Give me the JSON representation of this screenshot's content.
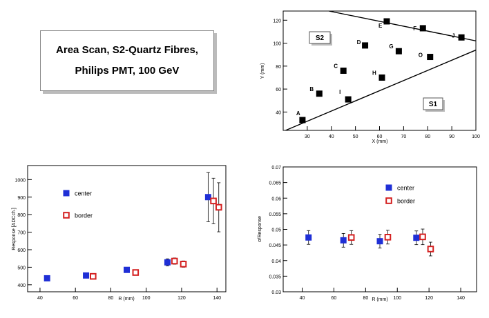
{
  "title_box": {
    "line1": "Area Scan, S2-Quartz Fibres,",
    "line2": "Philips PMT, 100 GeV"
  },
  "colors": {
    "center": "#1f2fd6",
    "border": "#d42020",
    "marker": "#000000",
    "axis": "#000000"
  },
  "chart_data": [
    {
      "type": "scatter",
      "name": "area-scan-map",
      "xlabel": "X (mm)",
      "ylabel": "Y (mm)",
      "xlim": [
        20,
        100
      ],
      "ylim": [
        24,
        128
      ],
      "xticks": [
        30,
        40,
        50,
        60,
        70,
        80,
        90,
        100
      ],
      "yticks": [
        40,
        60,
        80,
        100,
        120
      ],
      "points": [
        {
          "label": "A",
          "x": 28,
          "y": 33
        },
        {
          "label": "B",
          "x": 35,
          "y": 56
        },
        {
          "label": "C",
          "x": 45,
          "y": 76
        },
        {
          "label": "D",
          "x": 54,
          "y": 98
        },
        {
          "label": "E",
          "x": 63,
          "y": 119
        },
        {
          "label": "F",
          "x": 78,
          "y": 113
        },
        {
          "label": "G",
          "x": 68,
          "y": 93
        },
        {
          "label": "H",
          "x": 61,
          "y": 70
        },
        {
          "label": "I",
          "x": 47,
          "y": 51
        },
        {
          "label": "J",
          "x": 94,
          "y": 105
        },
        {
          "label": "O",
          "x": 81,
          "y": 88
        }
      ],
      "lines": [
        {
          "x1": 39,
          "y1": 128,
          "x2": 100,
          "y2": 102
        },
        {
          "x1": 21,
          "y1": 24,
          "x2": 100,
          "y2": 94
        }
      ],
      "region_labels": [
        "S2",
        "S1"
      ]
    },
    {
      "type": "scatter",
      "name": "response",
      "xlabel": "R (mm)",
      "ylabel": "Response [ADCch.]",
      "xlim": [
        33,
        145
      ],
      "ylim": [
        360,
        1080
      ],
      "xticks": [
        40,
        60,
        80,
        100,
        120,
        140
      ],
      "yticks": [
        400,
        500,
        600,
        700,
        800,
        900,
        1000
      ],
      "legend": [
        "center",
        "border"
      ],
      "series": [
        {
          "name": "center",
          "x": [
            44,
            66,
            89,
            112,
            135
          ],
          "y": [
            437,
            453,
            485,
            528,
            900
          ],
          "err": [
            12,
            12,
            15,
            20,
            140
          ]
        },
        {
          "name": "border",
          "x": [
            70,
            94,
            116,
            121,
            138,
            141
          ],
          "y": [
            448,
            470,
            535,
            518,
            878,
            842
          ],
          "err": [
            12,
            15,
            18,
            18,
            130,
            140
          ]
        }
      ]
    },
    {
      "type": "scatter",
      "name": "sigma-response",
      "xlabel": "R (mm)",
      "ylabel": "σ/Response",
      "xlim": [
        28,
        150
      ],
      "ylim": [
        0.03,
        0.07
      ],
      "xticks": [
        40,
        60,
        80,
        100,
        120,
        140
      ],
      "yticks": [
        "0.03",
        "0.035",
        "0.04",
        "0.045",
        "0.05",
        "0.055",
        "0.06",
        "0.065",
        "0.07"
      ],
      "legend": [
        "center",
        "border"
      ],
      "series": [
        {
          "name": "center",
          "x": [
            44,
            66,
            89,
            112
          ],
          "y": [
            0.0474,
            0.0465,
            0.0462,
            0.0473
          ],
          "err": [
            0.0022,
            0.0022,
            0.0022,
            0.0022
          ]
        },
        {
          "name": "border",
          "x": [
            71,
            94,
            116,
            121
          ],
          "y": [
            0.0474,
            0.0475,
            0.0476,
            0.0437
          ],
          "err": [
            0.0022,
            0.0022,
            0.0025,
            0.0022
          ]
        }
      ]
    }
  ]
}
